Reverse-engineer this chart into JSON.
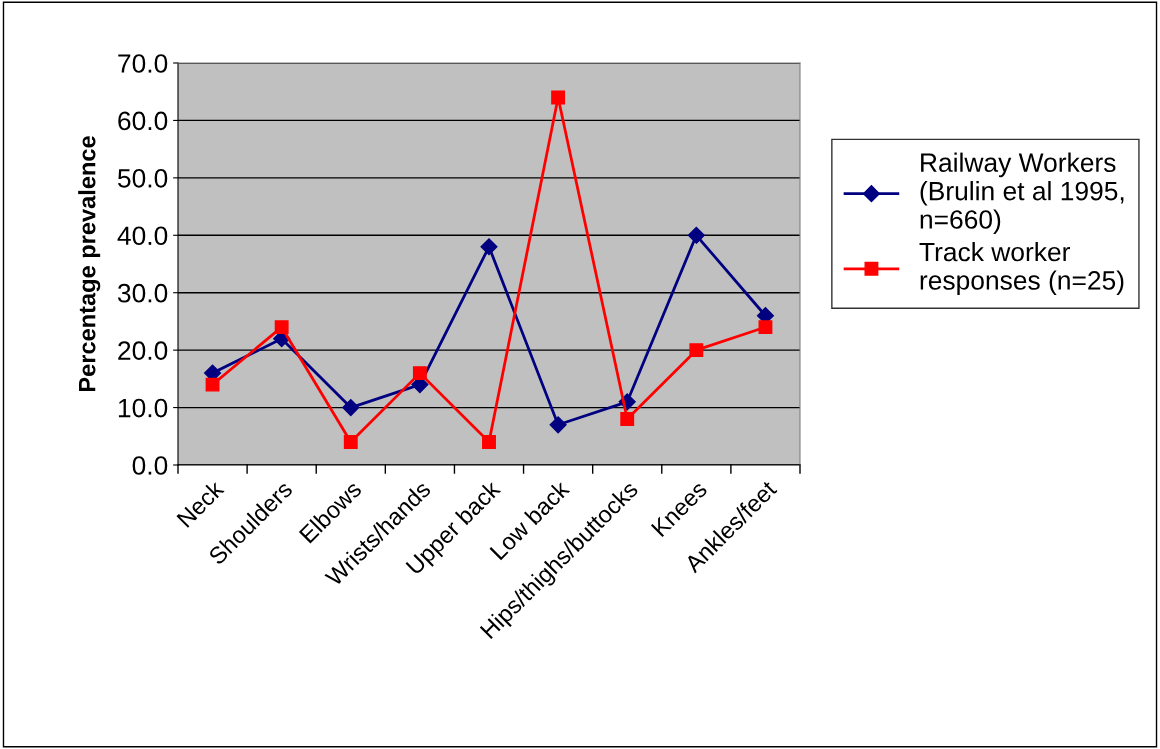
{
  "chart_data": {
    "type": "line",
    "ylabel": "Percentage prevalence",
    "categories": [
      "Neck",
      "Shoulders",
      "Elbows",
      "Wrists/hands",
      "Upper back",
      "Low back",
      "Hips/thighs/buttocks",
      "Knees",
      "Ankles/feet"
    ],
    "series": [
      {
        "name": "Railway Workers\n(Brulin et al 1995,\nn=660)",
        "color": "#000080",
        "marker": "diamond",
        "values": [
          16,
          22,
          10,
          14,
          38,
          7,
          11,
          40,
          26
        ]
      },
      {
        "name": "Track worker\nresponses (n=25)",
        "color": "#ff0000",
        "marker": "square",
        "values": [
          14,
          24,
          4,
          16,
          4,
          64,
          8,
          20,
          24
        ]
      }
    ],
    "ylim": [
      0,
      70
    ],
    "yticks": [
      {
        "value": 0,
        "label": "0.0"
      },
      {
        "value": 10,
        "label": "10.0"
      },
      {
        "value": 20,
        "label": "20.0"
      },
      {
        "value": 30,
        "label": "30.0"
      },
      {
        "value": 40,
        "label": "40.0"
      },
      {
        "value": 50,
        "label": "50.0"
      },
      {
        "value": 60,
        "label": "60.0"
      },
      {
        "value": 70,
        "label": "70.0"
      }
    ],
    "grid": "y",
    "legend": "right"
  }
}
